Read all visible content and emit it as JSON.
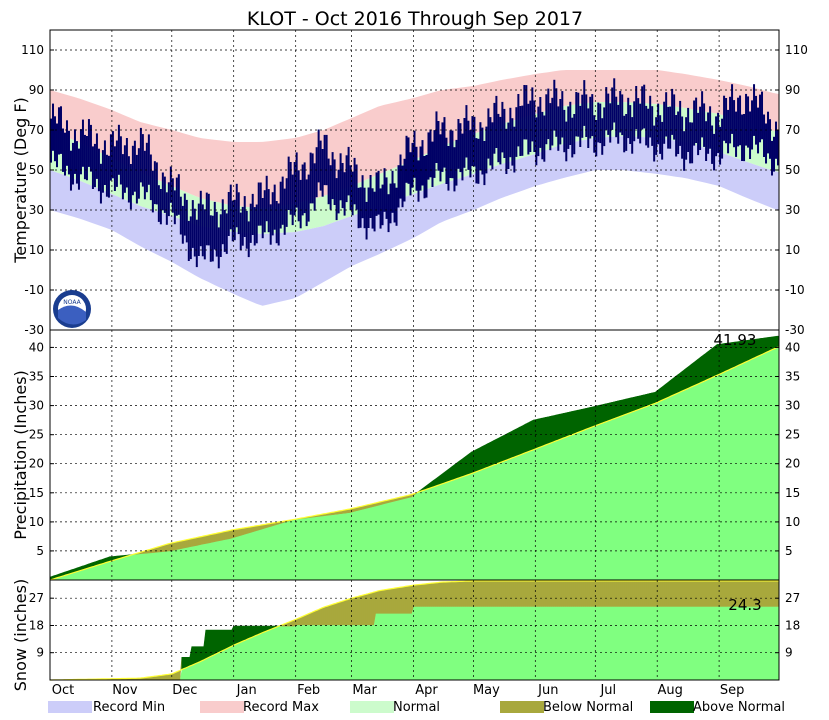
{
  "title": "KLOT - Oct 2016 Through Sep 2017",
  "colors": {
    "record_min": "#cccdf9",
    "record_max": "#f9cccc",
    "normal": "#ccfbcc",
    "observed": "#000066",
    "normal_precip": "#80ff80",
    "normal_line": "#ffff33",
    "below_normal": "#a8a83d",
    "above_normal": "#006400",
    "grid": "#000000"
  },
  "months": [
    "Oct",
    "Nov",
    "Dec",
    "Jan",
    "Feb",
    "Mar",
    "Apr",
    "May",
    "Jun",
    "Jul",
    "Aug",
    "Sep"
  ],
  "legend": {
    "record_min": "Record Min",
    "record_max": "Record Max",
    "normal": "Normal",
    "below_normal": "Below Normal",
    "above_normal": "Above Normal"
  },
  "logo_text": "NOAA",
  "chart_data": [
    {
      "type": "area",
      "panel": "temperature",
      "ylabel": "Temperature (Deg F)",
      "ylim": [
        -30,
        120
      ],
      "yticks": [
        -30,
        -10,
        10,
        30,
        50,
        70,
        90,
        110
      ],
      "grid": true,
      "x_domain": [
        "2016-10-01",
        "2017-09-30"
      ],
      "series": [
        {
          "name": "Record Max",
          "x": [
            "2016-10-01",
            "2016-10-15",
            "2016-11-01",
            "2016-11-15",
            "2016-12-01",
            "2016-12-15",
            "2017-01-01",
            "2017-01-15",
            "2017-02-01",
            "2017-02-15",
            "2017-03-01",
            "2017-03-15",
            "2017-04-01",
            "2017-04-15",
            "2017-05-01",
            "2017-05-15",
            "2017-06-01",
            "2017-06-15",
            "2017-07-01",
            "2017-07-15",
            "2017-08-01",
            "2017-08-15",
            "2017-09-01",
            "2017-09-15",
            "2017-09-30"
          ],
          "values": [
            90,
            86,
            80,
            74,
            70,
            66,
            64,
            64,
            66,
            70,
            76,
            82,
            86,
            90,
            92,
            95,
            98,
            100,
            100,
            100,
            100,
            98,
            95,
            92,
            88
          ]
        },
        {
          "name": "Normal High",
          "x": [
            "2016-10-01",
            "2016-10-15",
            "2016-11-01",
            "2016-11-15",
            "2016-12-01",
            "2016-12-15",
            "2017-01-01",
            "2017-01-15",
            "2017-02-01",
            "2017-02-15",
            "2017-03-01",
            "2017-03-15",
            "2017-04-01",
            "2017-04-15",
            "2017-05-01",
            "2017-05-15",
            "2017-06-01",
            "2017-06-15",
            "2017-07-01",
            "2017-07-15",
            "2017-08-01",
            "2017-08-15",
            "2017-09-01",
            "2017-09-15",
            "2017-09-30"
          ],
          "values": [
            70,
            64,
            56,
            49,
            42,
            36,
            32,
            31,
            33,
            37,
            42,
            48,
            55,
            62,
            68,
            73,
            78,
            82,
            84,
            84,
            83,
            81,
            78,
            74,
            69
          ]
        },
        {
          "name": "Normal Low",
          "x": [
            "2016-10-01",
            "2016-10-15",
            "2016-11-01",
            "2016-11-15",
            "2016-12-01",
            "2016-12-15",
            "2017-01-01",
            "2017-01-15",
            "2017-02-01",
            "2017-02-15",
            "2017-03-01",
            "2017-03-15",
            "2017-04-01",
            "2017-04-15",
            "2017-05-01",
            "2017-05-15",
            "2017-06-01",
            "2017-06-15",
            "2017-07-01",
            "2017-07-15",
            "2017-08-01",
            "2017-08-15",
            "2017-09-01",
            "2017-09-15",
            "2017-09-30"
          ],
          "values": [
            50,
            45,
            38,
            32,
            27,
            22,
            19,
            18,
            19,
            22,
            27,
            32,
            38,
            43,
            48,
            53,
            58,
            63,
            66,
            67,
            66,
            64,
            59,
            54,
            49
          ]
        },
        {
          "name": "Record Min",
          "x": [
            "2016-10-01",
            "2016-10-15",
            "2016-11-01",
            "2016-11-15",
            "2016-12-01",
            "2016-12-15",
            "2017-01-01",
            "2017-01-15",
            "2017-02-01",
            "2017-02-15",
            "2017-03-01",
            "2017-03-15",
            "2017-04-01",
            "2017-04-15",
            "2017-05-01",
            "2017-05-15",
            "2017-06-01",
            "2017-06-15",
            "2017-07-01",
            "2017-07-15",
            "2017-08-01",
            "2017-08-15",
            "2017-09-01",
            "2017-09-15",
            "2017-09-30"
          ],
          "values": [
            30,
            26,
            20,
            12,
            4,
            -4,
            -12,
            -18,
            -14,
            -6,
            2,
            8,
            16,
            24,
            30,
            36,
            42,
            46,
            50,
            50,
            48,
            46,
            42,
            36,
            30
          ]
        },
        {
          "name": "Observed High",
          "x": [
            "2016-10-01",
            "2016-10-15",
            "2016-11-01",
            "2016-11-15",
            "2016-12-01",
            "2016-12-15",
            "2017-01-01",
            "2017-01-15",
            "2017-02-01",
            "2017-02-15",
            "2017-03-01",
            "2017-03-15",
            "2017-04-01",
            "2017-04-15",
            "2017-05-01",
            "2017-05-15",
            "2017-06-01",
            "2017-06-15",
            "2017-07-01",
            "2017-07-15",
            "2017-08-01",
            "2017-08-15",
            "2017-09-01",
            "2017-09-15",
            "2017-09-30"
          ],
          "values": [
            76,
            68,
            62,
            64,
            42,
            30,
            34,
            36,
            50,
            62,
            50,
            40,
            62,
            70,
            72,
            78,
            86,
            84,
            84,
            86,
            82,
            80,
            78,
            88,
            72
          ]
        },
        {
          "name": "Observed Low",
          "x": [
            "2016-10-01",
            "2016-10-15",
            "2016-11-01",
            "2016-11-15",
            "2016-12-01",
            "2016-12-15",
            "2017-01-01",
            "2017-01-15",
            "2017-02-01",
            "2017-02-15",
            "2017-03-01",
            "2017-03-15",
            "2017-04-01",
            "2017-04-15",
            "2017-05-01",
            "2017-05-15",
            "2017-06-01",
            "2017-06-15",
            "2017-07-01",
            "2017-07-15",
            "2017-08-01",
            "2017-08-15",
            "2017-09-01",
            "2017-09-15",
            "2017-09-30"
          ],
          "values": [
            54,
            46,
            40,
            38,
            26,
            4,
            14,
            16,
            24,
            38,
            28,
            20,
            40,
            46,
            48,
            54,
            60,
            62,
            64,
            66,
            62,
            58,
            58,
            62,
            54
          ]
        }
      ]
    },
    {
      "type": "area",
      "panel": "precipitation",
      "ylabel": "Precipitation (Inches)",
      "ylim": [
        0,
        43
      ],
      "yticks": [
        5,
        10,
        15,
        20,
        25,
        30,
        35,
        40
      ],
      "grid": true,
      "x_domain": [
        "2016-10-01",
        "2017-09-30"
      ],
      "series": [
        {
          "name": "Normal",
          "x": [
            "2016-10-01",
            "2016-10-31",
            "2016-11-30",
            "2016-12-31",
            "2017-01-31",
            "2017-02-28",
            "2017-03-31",
            "2017-04-30",
            "2017-05-31",
            "2017-06-30",
            "2017-07-31",
            "2017-08-31",
            "2017-09-30"
          ],
          "values": [
            0,
            3.2,
            6.3,
            8.6,
            10.4,
            12.2,
            14.7,
            18.3,
            22.4,
            26.4,
            30.4,
            35.2,
            40.0
          ]
        },
        {
          "name": "Observed",
          "x": [
            "2016-10-01",
            "2016-10-31",
            "2016-11-30",
            "2016-12-31",
            "2017-01-31",
            "2017-02-28",
            "2017-03-31",
            "2017-04-30",
            "2017-05-31",
            "2017-06-30",
            "2017-07-31",
            "2017-08-31",
            "2017-09-30"
          ],
          "values": [
            0.5,
            4.0,
            5.0,
            7.2,
            10.4,
            11.6,
            14.3,
            22.0,
            27.5,
            29.8,
            32.3,
            40.5,
            41.93
          ]
        }
      ],
      "annotations": [
        "41.93"
      ]
    },
    {
      "type": "area",
      "panel": "snow",
      "ylabel": "Snow (inches)",
      "ylim": [
        0,
        33
      ],
      "yticks": [
        9,
        18,
        27
      ],
      "grid": true,
      "x_domain": [
        "2016-10-01",
        "2017-09-30"
      ],
      "series": [
        {
          "name": "Normal",
          "x": [
            "2016-10-01",
            "2016-11-15",
            "2016-12-01",
            "2016-12-15",
            "2017-01-01",
            "2017-01-15",
            "2017-02-01",
            "2017-02-15",
            "2017-03-01",
            "2017-03-15",
            "2017-04-01",
            "2017-04-15",
            "2017-05-01",
            "2017-09-30"
          ],
          "values": [
            0,
            0.6,
            2.0,
            6.0,
            11.5,
            15.5,
            20.0,
            24.0,
            27.0,
            29.5,
            31.3,
            32.3,
            32.7,
            32.7
          ]
        },
        {
          "name": "Observed",
          "x": [
            "2016-10-01",
            "2016-12-05",
            "2016-12-06",
            "2016-12-10",
            "2016-12-11",
            "2016-12-17",
            "2016-12-18",
            "2016-12-31",
            "2017-01-01",
            "2017-01-31",
            "2017-02-01",
            "2017-03-12",
            "2017-03-13",
            "2017-03-31",
            "2017-04-01",
            "2017-09-30"
          ],
          "values": [
            0,
            0,
            7.5,
            7.5,
            11.0,
            11.0,
            16.5,
            16.5,
            17.8,
            17.8,
            18.2,
            18.2,
            22.0,
            22.0,
            24.3,
            24.3
          ]
        }
      ],
      "annotations": [
        "24.3"
      ]
    }
  ]
}
